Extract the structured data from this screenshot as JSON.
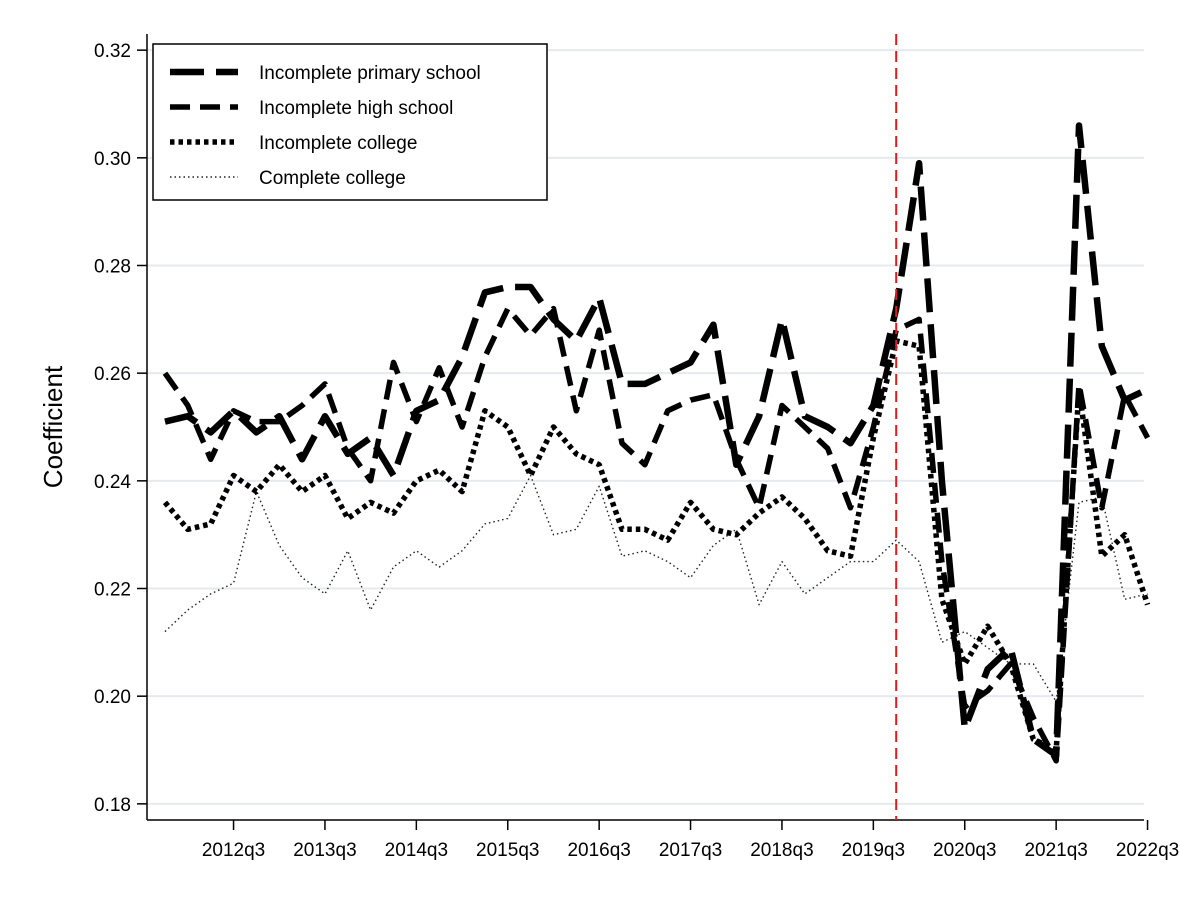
{
  "chart_data": {
    "type": "line",
    "ylabel": "Coefficient",
    "xlabel": "",
    "ylim": [
      0.177,
      0.323
    ],
    "yticks": [
      0.18,
      0.2,
      0.22,
      0.24,
      0.26,
      0.28,
      0.3,
      0.32
    ],
    "ytick_labels": [
      "0.18",
      "0.20",
      "0.22",
      "0.24",
      "0.26",
      "0.28",
      "0.30",
      "0.32"
    ],
    "x_periods": [
      "2011q4",
      "2012q1",
      "2012q2",
      "2012q3",
      "2012q4",
      "2013q1",
      "2013q2",
      "2013q3",
      "2013q4",
      "2014q1",
      "2014q2",
      "2014q3",
      "2014q4",
      "2015q1",
      "2015q2",
      "2015q3",
      "2015q4",
      "2016q1",
      "2016q2",
      "2016q3",
      "2016q4",
      "2017q1",
      "2017q2",
      "2017q3",
      "2017q4",
      "2018q1",
      "2018q2",
      "2018q3",
      "2018q4",
      "2019q1",
      "2019q2",
      "2019q3",
      "2019q4",
      "2020q1",
      "2020q2",
      "2020q3",
      "2020q4",
      "2021q1",
      "2021q2",
      "2021q3",
      "2021q4",
      "2022q1",
      "2022q2",
      "2022q3"
    ],
    "xtick_labels": [
      "2012q3",
      "2013q3",
      "2014q3",
      "2015q3",
      "2016q3",
      "2017q3",
      "2018q3",
      "2019q3",
      "2020q3",
      "2021q3",
      "2022q3"
    ],
    "vline_at": "2019q4",
    "vline_color": "#e31a1c",
    "legend_position": "top-left",
    "grid": true,
    "series": [
      {
        "name": "Incomplete primary school",
        "style": "long-dash",
        "values": [
          0.251,
          0.252,
          0.249,
          0.253,
          0.249,
          0.252,
          0.244,
          0.252,
          0.245,
          0.248,
          0.241,
          0.253,
          0.255,
          0.263,
          0.275,
          0.276,
          0.276,
          0.27,
          0.266,
          0.274,
          0.258,
          0.258,
          0.26,
          0.262,
          0.269,
          0.243,
          0.252,
          0.27,
          0.252,
          0.25,
          0.247,
          0.254,
          0.272,
          0.299,
          0.24,
          0.194,
          0.205,
          0.209,
          0.192,
          0.189,
          0.306,
          0.265,
          0.255,
          0.257
        ]
      },
      {
        "name": "Incomplete high school",
        "style": "dash",
        "values": [
          0.26,
          0.254,
          0.244,
          0.253,
          0.251,
          0.251,
          0.254,
          0.258,
          0.246,
          0.24,
          0.262,
          0.251,
          0.261,
          0.25,
          0.263,
          0.272,
          0.267,
          0.272,
          0.253,
          0.268,
          0.247,
          0.243,
          0.253,
          0.255,
          0.256,
          0.244,
          0.235,
          0.254,
          0.25,
          0.246,
          0.235,
          0.25,
          0.268,
          0.27,
          0.225,
          0.198,
          0.201,
          0.206,
          0.196,
          0.188,
          0.258,
          0.235,
          0.256,
          0.248
        ]
      },
      {
        "name": "Incomplete college",
        "style": "dot",
        "values": [
          0.236,
          0.231,
          0.232,
          0.241,
          0.238,
          0.243,
          0.238,
          0.241,
          0.233,
          0.236,
          0.234,
          0.24,
          0.242,
          0.238,
          0.253,
          0.25,
          0.241,
          0.25,
          0.245,
          0.243,
          0.231,
          0.231,
          0.229,
          0.236,
          0.231,
          0.23,
          0.234,
          0.237,
          0.233,
          0.227,
          0.226,
          0.248,
          0.266,
          0.265,
          0.218,
          0.206,
          0.213,
          0.206,
          0.192,
          0.19,
          0.257,
          0.226,
          0.23,
          0.217
        ]
      },
      {
        "name": "Complete college",
        "style": "fine-dot",
        "values": [
          0.212,
          0.216,
          0.219,
          0.221,
          0.238,
          0.228,
          0.222,
          0.219,
          0.227,
          0.216,
          0.224,
          0.227,
          0.224,
          0.227,
          0.232,
          0.233,
          0.241,
          0.23,
          0.231,
          0.239,
          0.226,
          0.227,
          0.225,
          0.222,
          0.228,
          0.231,
          0.217,
          0.225,
          0.219,
          0.222,
          0.225,
          0.225,
          0.229,
          0.225,
          0.21,
          0.212,
          0.209,
          0.206,
          0.206,
          0.199,
          0.236,
          0.237,
          0.218,
          0.219
        ]
      }
    ]
  }
}
